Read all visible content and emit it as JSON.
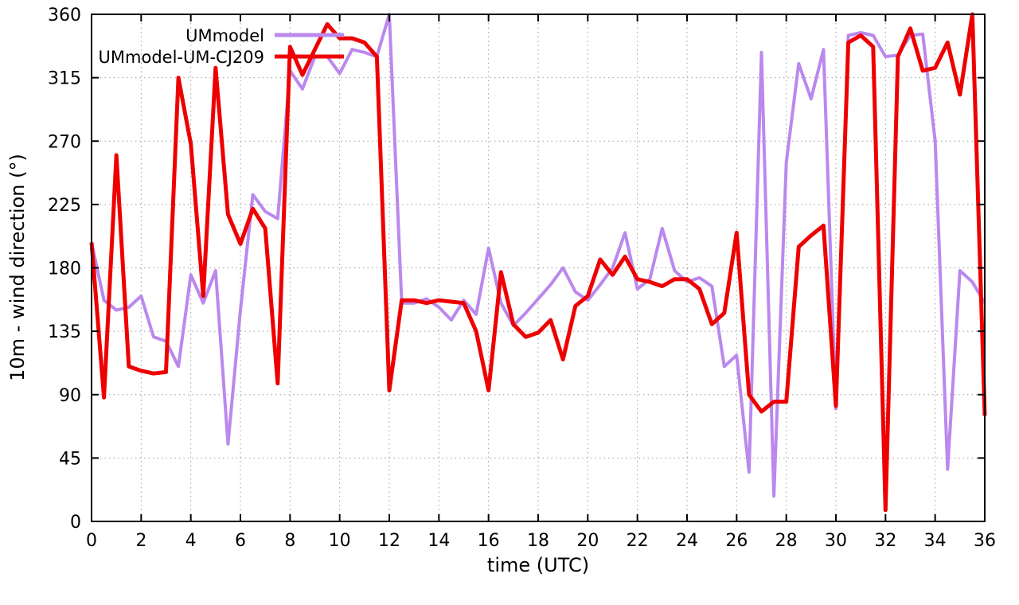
{
  "chart_data": {
    "type": "line",
    "title": "",
    "xlabel": "time (UTC)",
    "ylabel": "10m - wind direction (°)",
    "xlim": [
      0,
      36
    ],
    "ylim": [
      0,
      360
    ],
    "xtick_step": 2,
    "ytick_step": 45,
    "grid": true,
    "grid_style": "dotted",
    "grid_color": "#9e9e9e",
    "axis_color": "#000000",
    "background": "#ffffff",
    "legend_position": "top-left-inside",
    "x": [
      0,
      0.5,
      1,
      1.5,
      2,
      2.5,
      3,
      3.5,
      4,
      4.5,
      5,
      5.5,
      6,
      6.5,
      7,
      7.5,
      8,
      8.5,
      9,
      9.5,
      10,
      10.5,
      11,
      11.5,
      12,
      12.5,
      13,
      13.5,
      14,
      14.5,
      15,
      15.5,
      16,
      16.5,
      17,
      17.5,
      18,
      18.5,
      19,
      19.5,
      20,
      20.5,
      21,
      21.5,
      22,
      22.5,
      23,
      23.5,
      24,
      24.5,
      25,
      25.5,
      26,
      26.5,
      27,
      27.5,
      28,
      28.5,
      29,
      29.5,
      30,
      30.5,
      31,
      31.5,
      32,
      32.5,
      33,
      33.5,
      34,
      34.5,
      35,
      35.5,
      36
    ],
    "series": [
      {
        "name": "UMmodel",
        "color": "#bb88ee",
        "width": 4,
        "values": [
          198,
          157,
          150,
          152,
          160,
          131,
          128,
          110,
          175,
          155,
          178,
          55,
          150,
          232,
          220,
          215,
          320,
          307,
          330,
          330,
          318,
          335,
          333,
          330,
          360,
          155,
          155,
          158,
          152,
          143,
          157,
          147,
          194,
          155,
          139,
          148,
          158,
          168,
          180,
          163,
          157,
          168,
          180,
          205,
          165,
          172,
          208,
          178,
          170,
          173,
          167,
          110,
          118,
          35,
          333,
          18,
          255,
          325,
          300,
          335,
          80,
          345,
          347,
          345,
          330,
          331,
          345,
          346,
          270,
          37,
          178,
          170,
          155
        ]
      },
      {
        "name": "UMmodel-UM-CJ209",
        "color": "#ee0000",
        "width": 5,
        "values": [
          198,
          88,
          260,
          110,
          107,
          105,
          106,
          315,
          268,
          160,
          322,
          218,
          197,
          222,
          208,
          98,
          337,
          317,
          335,
          353,
          343,
          343,
          340,
          330,
          93,
          157,
          157,
          155,
          157,
          156,
          155,
          135,
          93,
          177,
          140,
          131,
          134,
          143,
          115,
          153,
          160,
          186,
          175,
          188,
          172,
          170,
          167,
          172,
          172,
          165,
          140,
          148,
          205,
          90,
          78,
          85,
          85,
          195,
          203,
          210,
          82,
          340,
          345,
          337,
          8,
          330,
          350,
          320,
          322,
          340,
          303,
          360,
          75
        ]
      }
    ]
  }
}
